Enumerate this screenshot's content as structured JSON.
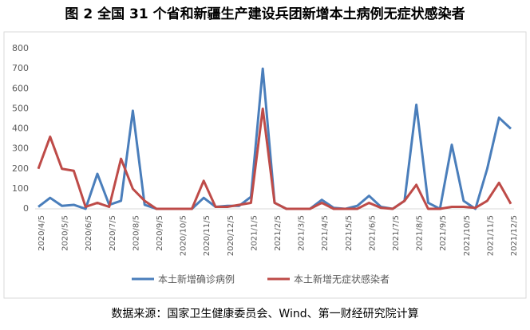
{
  "chart_data": {
    "type": "line",
    "title": "图 2  全国 31 个省和新疆生产建设兵团新增本土病例无症状感染者",
    "source": "数据来源：国家卫生健康委员会、Wind、第一财经研究院计算",
    "categories": [
      "2020/4/5",
      null,
      "2020/5/5",
      null,
      "2020/6/5",
      null,
      "2020/7/5",
      null,
      "2020/8/5",
      null,
      "2020/9/5",
      null,
      "2020/10/5",
      null,
      "2020/11/5",
      null,
      "2020/12/5",
      null,
      "2021/1/5",
      null,
      "2021/2/5",
      null,
      "2021/3/5",
      null,
      "2021/4/5",
      null,
      "2021/5/5",
      null,
      "2021/6/5",
      null,
      "2021/7/5",
      null,
      "2021/8/5",
      null,
      "2021/9/5",
      null,
      "2021/10/5",
      null,
      "2021/11/5",
      null,
      "2021/12/5"
    ],
    "series": [
      {
        "name": "本土新增确诊病例",
        "color": "#4a7ebb",
        "values": [
          10,
          55,
          15,
          20,
          0,
          175,
          20,
          40,
          490,
          20,
          0,
          0,
          0,
          0,
          55,
          10,
          15,
          15,
          60,
          700,
          30,
          0,
          0,
          0,
          45,
          5,
          0,
          15,
          65,
          10,
          0,
          40,
          520,
          30,
          0,
          320,
          40,
          0,
          200,
          455,
          400
        ]
      },
      {
        "name": "本土新增无症状感染者",
        "color": "#be4b48",
        "values": [
          200,
          360,
          200,
          190,
          10,
          30,
          10,
          250,
          100,
          40,
          0,
          0,
          0,
          0,
          140,
          10,
          10,
          20,
          30,
          500,
          30,
          0,
          0,
          0,
          30,
          0,
          0,
          0,
          30,
          5,
          0,
          40,
          120,
          0,
          0,
          10,
          10,
          5,
          40,
          130,
          25
        ]
      }
    ],
    "ylim": [
      0,
      800
    ],
    "yticks": [
      0,
      100,
      200,
      300,
      400,
      500,
      600,
      700,
      800
    ],
    "legend": "bottom"
  }
}
